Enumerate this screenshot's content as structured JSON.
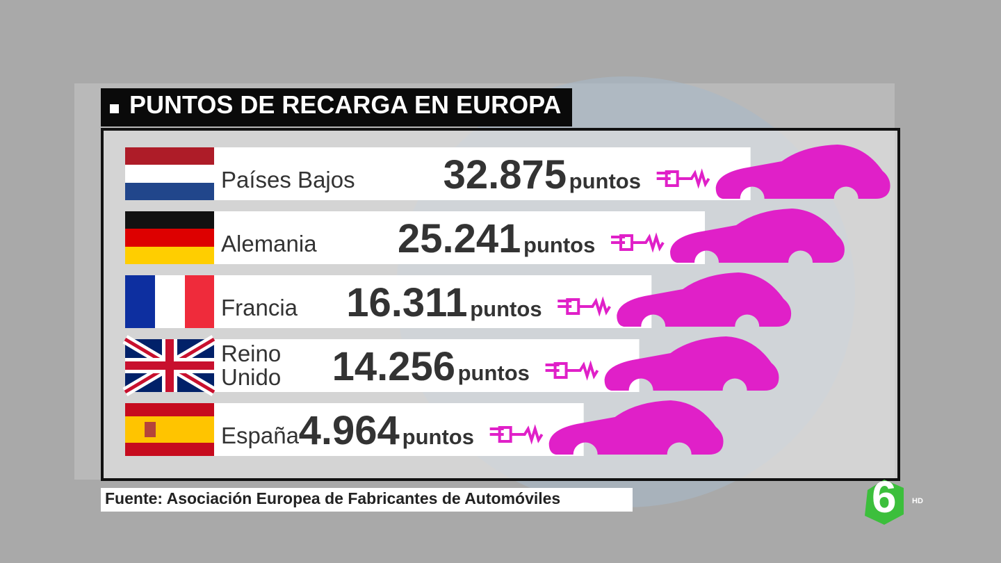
{
  "chart_data": {
    "type": "bar",
    "title": "PUNTOS DE RECARGA EN EUROPA",
    "categories": [
      "Países Bajos",
      "Alemania",
      "Francia",
      "Reino\nUnido",
      "España"
    ],
    "values": [
      32875,
      25241,
      16311,
      14256,
      4964
    ],
    "value_labels": [
      "32.875",
      "25.241",
      "16.311",
      "14.256",
      "4.964"
    ],
    "unit": "puntos",
    "color": "#e020c8",
    "source": "Fuente: Asociación Europea de Fabricantes de Automóviles"
  },
  "logo": {
    "mark": "6",
    "quality": "HD"
  }
}
